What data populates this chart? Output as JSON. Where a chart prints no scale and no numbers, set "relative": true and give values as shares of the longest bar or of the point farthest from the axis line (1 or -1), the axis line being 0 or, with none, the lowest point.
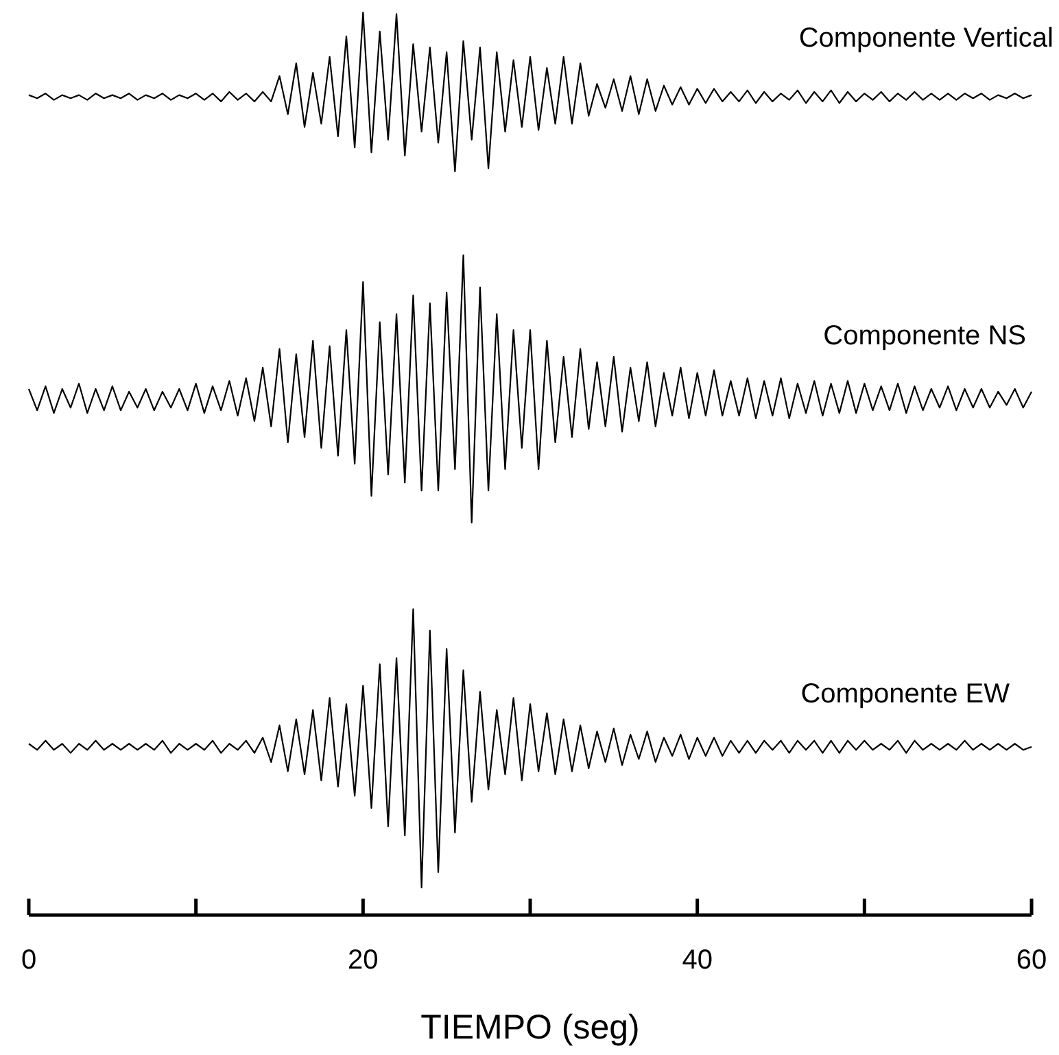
{
  "chart_data": [
    {
      "type": "line",
      "relative": true,
      "tick_labels": false,
      "xlim": [
        0,
        60
      ],
      "x": [
        0,
        0.5,
        1,
        1.5,
        2,
        2.5,
        3,
        3.5,
        4,
        4.5,
        5,
        5.5,
        6,
        6.5,
        7,
        7.5,
        8,
        8.5,
        9,
        9.5,
        10,
        10.5,
        11,
        11.5,
        12,
        12.5,
        13,
        13.5,
        14,
        14.5,
        15,
        15.5,
        16,
        16.5,
        17,
        17.5,
        18,
        18.5,
        19,
        19.5,
        20,
        20.5,
        21,
        21.5,
        22,
        22.5,
        23,
        23.5,
        24,
        24.5,
        25,
        25.5,
        26,
        26.5,
        27,
        27.5,
        28,
        28.5,
        29,
        29.5,
        30,
        30.5,
        31,
        31.5,
        32,
        32.5,
        33,
        33.5,
        34,
        34.5,
        35,
        35.5,
        36,
        36.5,
        37,
        37.5,
        38,
        38.5,
        39,
        39.5,
        40,
        40.5,
        41,
        41.5,
        42,
        42.5,
        43,
        43.5,
        44,
        44.5,
        45,
        45.5,
        46,
        46.5,
        47,
        47.5,
        48,
        48.5,
        49,
        49.5,
        50,
        50.5,
        51,
        51.5,
        52,
        52.5,
        53,
        53.5,
        54,
        54.5,
        55,
        55.5,
        56,
        56.5,
        57,
        57.5,
        58,
        58.5,
        59,
        59.5,
        60
      ],
      "series": [
        {
          "name": "Componente Vertical",
          "color": "#000000",
          "values": [
            0.48,
            0.46,
            0.49,
            0.45,
            0.48,
            0.46,
            0.48,
            0.45,
            0.49,
            0.46,
            0.48,
            0.46,
            0.49,
            0.45,
            0.48,
            0.46,
            0.49,
            0.45,
            0.48,
            0.46,
            0.49,
            0.45,
            0.49,
            0.44,
            0.5,
            0.45,
            0.49,
            0.44,
            0.5,
            0.44,
            0.6,
            0.36,
            0.68,
            0.28,
            0.62,
            0.3,
            0.72,
            0.22,
            0.85,
            0.15,
            1.0,
            0.12,
            0.88,
            0.2,
            0.99,
            0.1,
            0.8,
            0.25,
            0.78,
            0.18,
            0.75,
            0.0,
            0.82,
            0.2,
            0.78,
            0.02,
            0.75,
            0.25,
            0.7,
            0.28,
            0.72,
            0.26,
            0.65,
            0.3,
            0.72,
            0.3,
            0.68,
            0.35,
            0.55,
            0.4,
            0.58,
            0.38,
            0.6,
            0.36,
            0.58,
            0.38,
            0.54,
            0.42,
            0.53,
            0.42,
            0.52,
            0.43,
            0.52,
            0.44,
            0.5,
            0.44,
            0.51,
            0.43,
            0.5,
            0.44,
            0.49,
            0.45,
            0.51,
            0.43,
            0.5,
            0.44,
            0.51,
            0.43,
            0.5,
            0.44,
            0.49,
            0.45,
            0.5,
            0.44,
            0.49,
            0.45,
            0.5,
            0.45,
            0.49,
            0.45,
            0.49,
            0.45,
            0.49,
            0.46,
            0.49,
            0.45,
            0.48,
            0.46,
            0.49,
            0.46,
            0.48
          ]
        }
      ]
    },
    {
      "type": "line",
      "relative": true,
      "tick_labels": false,
      "xlim": [
        0,
        60
      ],
      "x": [
        0,
        0.5,
        1,
        1.5,
        2,
        2.5,
        3,
        3.5,
        4,
        4.5,
        5,
        5.5,
        6,
        6.5,
        7,
        7.5,
        8,
        8.5,
        9,
        9.5,
        10,
        10.5,
        11,
        11.5,
        12,
        12.5,
        13,
        13.5,
        14,
        14.5,
        15,
        15.5,
        16,
        16.5,
        17,
        17.5,
        18,
        18.5,
        19,
        19.5,
        20,
        20.5,
        21,
        21.5,
        22,
        22.5,
        23,
        23.5,
        24,
        24.5,
        25,
        25.5,
        26,
        26.5,
        27,
        27.5,
        28,
        28.5,
        29,
        29.5,
        30,
        30.5,
        31,
        31.5,
        32,
        32.5,
        33,
        33.5,
        34,
        34.5,
        35,
        35.5,
        36,
        36.5,
        37,
        37.5,
        38,
        38.5,
        39,
        39.5,
        40,
        40.5,
        41,
        41.5,
        42,
        42.5,
        43,
        43.5,
        44,
        44.5,
        45,
        45.5,
        46,
        46.5,
        47,
        47.5,
        48,
        48.5,
        49,
        49.5,
        50,
        50.5,
        51,
        51.5,
        52,
        52.5,
        53,
        53.5,
        54,
        54.5,
        55,
        55.5,
        56,
        56.5,
        57,
        57.5,
        58,
        58.5,
        59,
        59.5,
        60
      ],
      "series": [
        {
          "name": "Componente NS",
          "color": "#000000",
          "values": [
            0.5,
            0.42,
            0.51,
            0.41,
            0.5,
            0.43,
            0.52,
            0.41,
            0.5,
            0.42,
            0.51,
            0.42,
            0.49,
            0.43,
            0.5,
            0.42,
            0.49,
            0.43,
            0.5,
            0.42,
            0.52,
            0.41,
            0.51,
            0.42,
            0.53,
            0.4,
            0.54,
            0.38,
            0.58,
            0.36,
            0.65,
            0.3,
            0.63,
            0.32,
            0.68,
            0.28,
            0.66,
            0.25,
            0.72,
            0.22,
            0.9,
            0.1,
            0.75,
            0.18,
            0.78,
            0.15,
            0.85,
            0.12,
            0.82,
            0.12,
            0.86,
            0.2,
            1.0,
            0.0,
            0.88,
            0.12,
            0.78,
            0.2,
            0.72,
            0.28,
            0.72,
            0.2,
            0.68,
            0.3,
            0.62,
            0.32,
            0.65,
            0.35,
            0.6,
            0.36,
            0.62,
            0.34,
            0.58,
            0.38,
            0.6,
            0.36,
            0.56,
            0.4,
            0.58,
            0.39,
            0.56,
            0.4,
            0.57,
            0.4,
            0.53,
            0.4,
            0.54,
            0.39,
            0.53,
            0.4,
            0.54,
            0.39,
            0.52,
            0.41,
            0.53,
            0.4,
            0.52,
            0.41,
            0.53,
            0.41,
            0.52,
            0.42,
            0.51,
            0.42,
            0.52,
            0.41,
            0.51,
            0.42,
            0.5,
            0.43,
            0.51,
            0.42,
            0.5,
            0.43,
            0.5,
            0.43,
            0.49,
            0.44,
            0.5,
            0.43,
            0.49
          ]
        }
      ]
    },
    {
      "type": "line",
      "relative": true,
      "tick_labels": "x",
      "xlim": [
        0,
        60
      ],
      "xlabel": "TIEMPO (seg)",
      "xticks": [
        0,
        {
          "value": 10,
          "label": null
        },
        20,
        {
          "value": 30,
          "label": null
        },
        40,
        {
          "value": 50,
          "label": null
        },
        60
      ],
      "x": [
        0,
        0.5,
        1,
        1.5,
        2,
        2.5,
        3,
        3.5,
        4,
        4.5,
        5,
        5.5,
        6,
        6.5,
        7,
        7.5,
        8,
        8.5,
        9,
        9.5,
        10,
        10.5,
        11,
        11.5,
        12,
        12.5,
        13,
        13.5,
        14,
        14.5,
        15,
        15.5,
        16,
        16.5,
        17,
        17.5,
        18,
        18.5,
        19,
        19.5,
        20,
        20.5,
        21,
        21.5,
        22,
        22.5,
        23,
        23.5,
        24,
        24.5,
        25,
        25.5,
        26,
        26.5,
        27,
        27.5,
        28,
        28.5,
        29,
        29.5,
        30,
        30.5,
        31,
        31.5,
        32,
        32.5,
        33,
        33.5,
        34,
        34.5,
        35,
        35.5,
        36,
        36.5,
        37,
        37.5,
        38,
        38.5,
        39,
        39.5,
        40,
        40.5,
        41,
        41.5,
        42,
        42.5,
        43,
        43.5,
        44,
        44.5,
        45,
        45.5,
        46,
        46.5,
        47,
        47.5,
        48,
        48.5,
        49,
        49.5,
        50,
        50.5,
        51,
        51.5,
        52,
        52.5,
        53,
        53.5,
        54,
        54.5,
        55,
        55.5,
        56,
        56.5,
        57,
        57.5,
        58,
        58.5,
        59,
        59.5,
        60
      ],
      "series": [
        {
          "name": "Componente EW",
          "color": "#000000",
          "values": [
            0.56,
            0.54,
            0.57,
            0.54,
            0.56,
            0.53,
            0.56,
            0.54,
            0.57,
            0.54,
            0.56,
            0.54,
            0.56,
            0.54,
            0.56,
            0.54,
            0.57,
            0.53,
            0.56,
            0.54,
            0.56,
            0.54,
            0.57,
            0.53,
            0.56,
            0.54,
            0.57,
            0.53,
            0.58,
            0.5,
            0.62,
            0.47,
            0.64,
            0.46,
            0.67,
            0.44,
            0.71,
            0.42,
            0.69,
            0.39,
            0.75,
            0.35,
            0.82,
            0.29,
            0.84,
            0.26,
            1.0,
            0.09,
            0.93,
            0.14,
            0.87,
            0.27,
            0.8,
            0.37,
            0.73,
            0.41,
            0.67,
            0.46,
            0.71,
            0.44,
            0.69,
            0.47,
            0.66,
            0.46,
            0.64,
            0.47,
            0.62,
            0.48,
            0.6,
            0.5,
            0.61,
            0.49,
            0.59,
            0.51,
            0.6,
            0.5,
            0.58,
            0.52,
            0.59,
            0.51,
            0.58,
            0.52,
            0.58,
            0.52,
            0.57,
            0.53,
            0.57,
            0.53,
            0.57,
            0.54,
            0.57,
            0.53,
            0.57,
            0.54,
            0.57,
            0.53,
            0.57,
            0.53,
            0.57,
            0.54,
            0.57,
            0.54,
            0.56,
            0.54,
            0.57,
            0.53,
            0.57,
            0.54,
            0.56,
            0.54,
            0.56,
            0.54,
            0.57,
            0.54,
            0.56,
            0.54,
            0.56,
            0.54,
            0.56,
            0.54,
            0.55
          ]
        }
      ]
    }
  ]
}
